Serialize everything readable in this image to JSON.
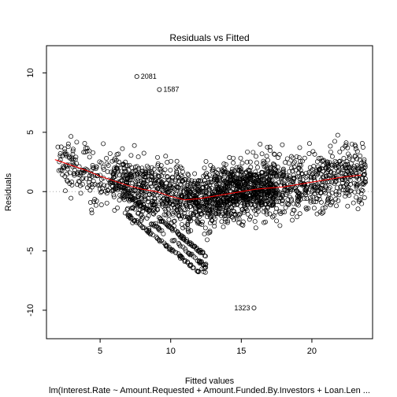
{
  "chart_data": {
    "type": "scatter",
    "title": "Residuals vs Fitted",
    "xlabel": "Fitted values",
    "ylabel": "Residuals",
    "subtitle": "lm(Interest.Rate ~ Amount.Requested + Amount.Funded.By.Investors + Loan.Len ...",
    "xlim": [
      1.2,
      24.3
    ],
    "ylim": [
      -12.4,
      12.3
    ],
    "xticks": [
      5,
      10,
      15,
      20
    ],
    "yticks": [
      -10,
      -5,
      0,
      5,
      10
    ],
    "reference_line": 0,
    "point_color": "#000000",
    "smooth_color": "#ff0000",
    "refline_color": "#aaaaaa",
    "labeled_points": [
      {
        "label": "2081",
        "x": 7.6,
        "y": 9.7
      },
      {
        "label": "1587",
        "x": 9.2,
        "y": 8.6
      },
      {
        "label": "1323",
        "x": 15.9,
        "y": -9.8
      }
    ],
    "smooth": {
      "x": [
        1.8,
        3,
        4,
        5,
        6,
        7,
        8,
        9,
        10,
        11,
        12,
        13,
        14,
        15,
        16,
        17,
        18,
        19,
        20,
        21,
        22,
        23.5
      ],
      "y": [
        2.7,
        2.2,
        1.8,
        1.3,
        0.9,
        0.5,
        0.2,
        0.0,
        -0.4,
        -0.7,
        -0.6,
        -0.4,
        -0.2,
        0.0,
        0.2,
        0.3,
        0.4,
        0.6,
        0.8,
        1.0,
        1.2,
        1.4
      ]
    },
    "scatter": {
      "seed": 20811587,
      "count": 2400,
      "clusters": [
        {
          "xmin": 2.0,
          "xmax": 6.0,
          "weight": 0.08
        },
        {
          "xmin": 6.0,
          "xmax": 10.5,
          "weight": 0.22
        },
        {
          "xmin": 10.5,
          "xmax": 17.5,
          "weight": 0.5
        },
        {
          "xmin": 17.5,
          "xmax": 23.8,
          "weight": 0.2
        }
      ]
    }
  }
}
